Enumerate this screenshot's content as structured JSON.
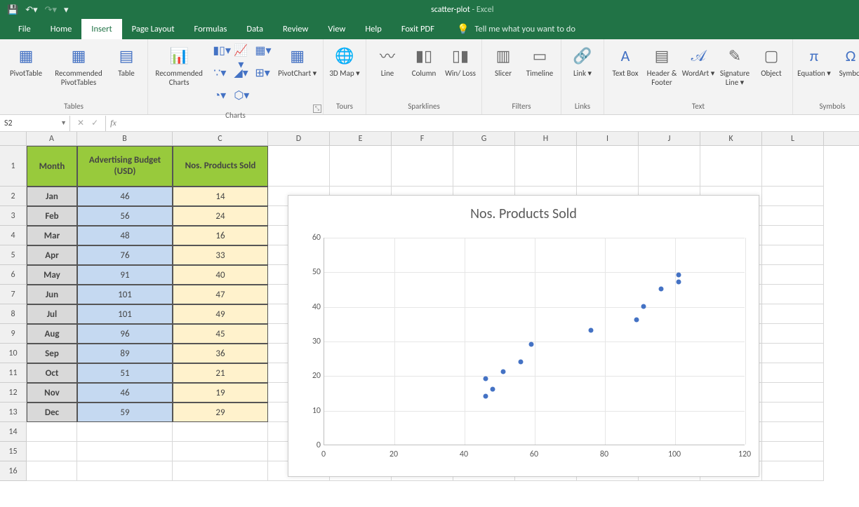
{
  "titlebar": {
    "filename": "scatter-plot",
    "app": "Excel"
  },
  "tabs": [
    "File",
    "Home",
    "Insert",
    "Page Layout",
    "Formulas",
    "Data",
    "Review",
    "View",
    "Help",
    "Foxit PDF"
  ],
  "active_tab": "Insert",
  "tell_me": "Tell me what you want to do",
  "ribbon": {
    "groups": [
      {
        "label": "Tables",
        "buttons": [
          "PivotTable",
          "Recommended PivotTables",
          "Table"
        ]
      },
      {
        "label": "Charts",
        "buttons": [
          "Recommended Charts",
          "PivotChart"
        ]
      },
      {
        "label": "Tours",
        "buttons": [
          "3D Map"
        ]
      },
      {
        "label": "Sparklines",
        "buttons": [
          "Line",
          "Column",
          "Win/ Loss"
        ]
      },
      {
        "label": "Filters",
        "buttons": [
          "Slicer",
          "Timeline"
        ]
      },
      {
        "label": "Links",
        "buttons": [
          "Link"
        ]
      },
      {
        "label": "Text",
        "buttons": [
          "Text Box",
          "Header & Footer",
          "WordArt",
          "Signature Line",
          "Object"
        ]
      },
      {
        "label": "Symbols",
        "buttons": [
          "Equation",
          "Symbol"
        ]
      }
    ]
  },
  "namebox": "S2",
  "columns": [
    "A",
    "B",
    "C",
    "D",
    "E",
    "F",
    "G",
    "H",
    "I",
    "J",
    "K",
    "L"
  ],
  "col_widths": {
    "A": 72,
    "B": 136,
    "C": 136,
    "rest": 88
  },
  "table": {
    "headers": [
      "Month",
      "Advertising Budget (USD)",
      "Nos. Products Sold"
    ],
    "header_bg": "#98ca3c",
    "month_bg": "#d9d9d9",
    "colB_bg": "#c5d9f1",
    "colC_bg": "#fff2cc",
    "rows": [
      [
        "Jan",
        46,
        14
      ],
      [
        "Feb",
        56,
        24
      ],
      [
        "Mar",
        48,
        16
      ],
      [
        "Apr",
        76,
        33
      ],
      [
        "May",
        91,
        40
      ],
      [
        "Jun",
        101,
        47
      ],
      [
        "Jul",
        101,
        49
      ],
      [
        "Aug",
        96,
        45
      ],
      [
        "Sep",
        89,
        36
      ],
      [
        "Oct",
        51,
        21
      ],
      [
        "Nov",
        46,
        19
      ],
      [
        "Dec",
        59,
        29
      ]
    ]
  },
  "row_numbers": [
    1,
    2,
    3,
    4,
    5,
    6,
    7,
    8,
    9,
    10,
    11,
    12,
    13,
    14,
    15,
    16
  ],
  "chart": {
    "type": "scatter",
    "title": "Nos. Products Sold",
    "title_fontsize": 20,
    "title_color": "#595959",
    "background_color": "#ffffff",
    "grid_color": "#e6e6e6",
    "axis_color": "#bfbfbf",
    "marker_color": "#4472c4",
    "marker_size": 7,
    "xlim": [
      0,
      120
    ],
    "xtick_step": 20,
    "ylim": [
      0,
      60
    ],
    "ytick_step": 10,
    "points_x": [
      46,
      56,
      48,
      76,
      91,
      101,
      101,
      96,
      89,
      51,
      46,
      59
    ],
    "points_y": [
      14,
      24,
      16,
      33,
      40,
      47,
      49,
      45,
      36,
      21,
      19,
      29
    ],
    "label_fontsize": 12,
    "label_color": "#595959"
  },
  "excel_colors": {
    "brand": "#217346",
    "ribbon_bg": "#f3f3f3",
    "accent": "#4472c4"
  }
}
